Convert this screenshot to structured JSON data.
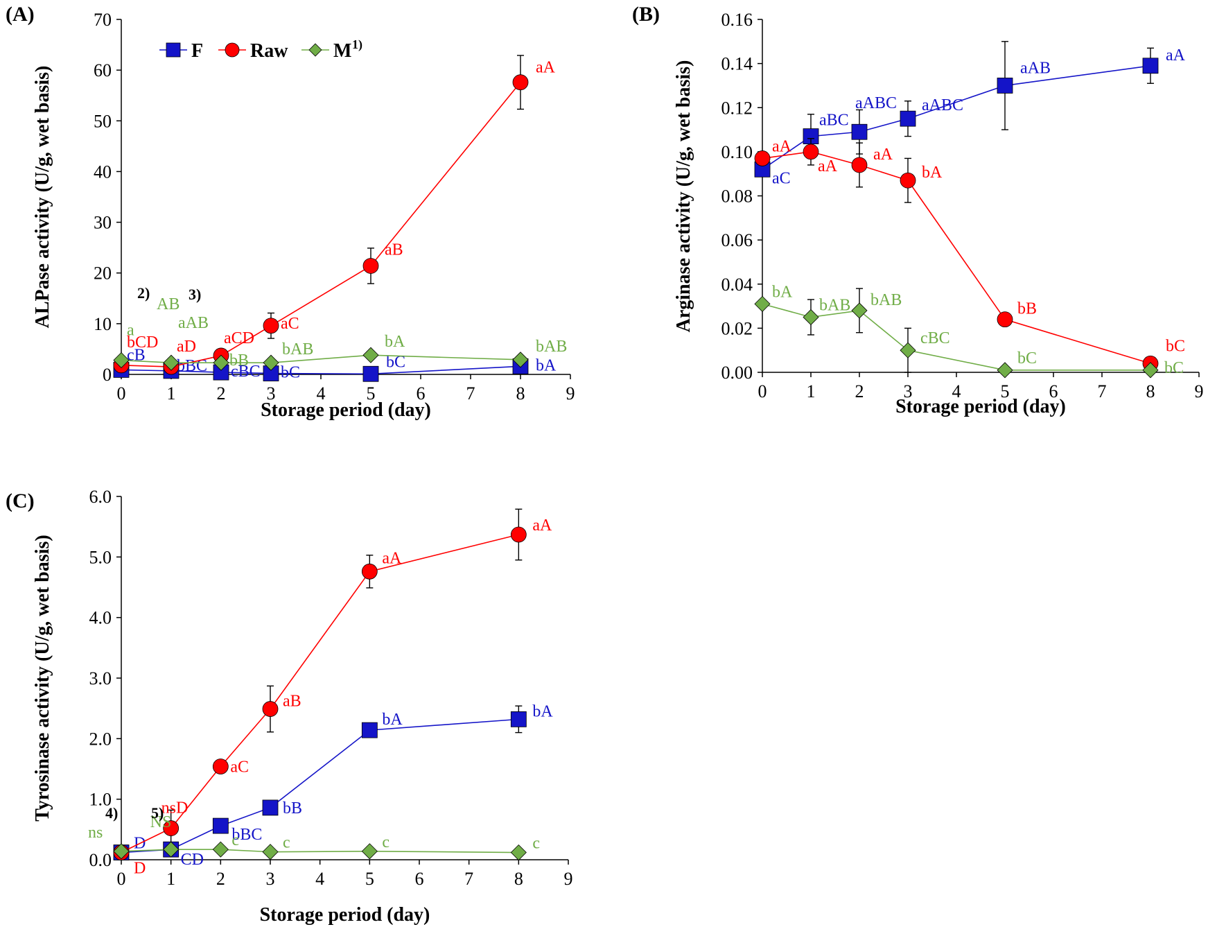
{
  "colors": {
    "F": "#1414c8",
    "Raw": "#ff0000",
    "M": "#70ad47",
    "axis": "#000000"
  },
  "chart_data": [
    {
      "type": "line",
      "panel_label": "(A)",
      "xlabel": "Storage period (day)",
      "ylabel": "ALPase activity (U/g, wet basis)",
      "xlim": [
        0,
        9
      ],
      "ylim": [
        0,
        70
      ],
      "xticks": [
        0,
        1,
        2,
        3,
        4,
        5,
        6,
        7,
        8,
        9
      ],
      "yticks": [
        0,
        10,
        20,
        30,
        40,
        50,
        60,
        70
      ],
      "ytick_labels": [
        "0",
        "10",
        "20",
        "30",
        "40",
        "50",
        "60",
        "70"
      ],
      "legend": {
        "position": "top-left",
        "entries": [
          "F",
          "Raw",
          "M"
        ],
        "footnote": "1)"
      },
      "series": [
        {
          "name": "F",
          "marker": "square",
          "x": [
            0,
            1,
            2,
            3,
            5,
            8
          ],
          "y": [
            0.9,
            0.7,
            0.4,
            0.2,
            0.1,
            1.6
          ],
          "err": [
            0,
            0,
            0,
            0,
            0,
            0
          ],
          "labels": [
            "cB",
            "bBC",
            "cBC",
            "bC",
            "bC",
            "bA"
          ]
        },
        {
          "name": "Raw",
          "marker": "circle",
          "x": [
            0,
            1,
            2,
            3,
            5,
            8
          ],
          "y": [
            1.8,
            1.5,
            3.7,
            9.6,
            21.4,
            57.6
          ],
          "err": [
            0,
            0,
            0,
            2.5,
            3.5,
            5.3
          ],
          "labels": [
            "bCD",
            "aD",
            "aCD",
            "aC",
            "aB",
            "aA"
          ]
        },
        {
          "name": "M",
          "marker": "diamond",
          "x": [
            0,
            1,
            2,
            3,
            5,
            8
          ],
          "y": [
            2.8,
            2.3,
            2.3,
            2.3,
            3.8,
            2.9
          ],
          "err": [
            0,
            0,
            0,
            0,
            0,
            0
          ],
          "labels": [
            "a",
            "aAB",
            "bB",
            "bAB",
            "bA",
            "bAB"
          ]
        }
      ],
      "extra_annotations": [
        {
          "text": "2)",
          "color": "#000000"
        },
        {
          "text": "AB",
          "color": "#70ad47"
        },
        {
          "text": "3)",
          "color": "#000000"
        }
      ]
    },
    {
      "type": "line",
      "panel_label": "(B)",
      "xlabel": "Storage period (day)",
      "ylabel": "Arginase activity (U/g, wet basis)",
      "xlim": [
        0,
        9
      ],
      "ylim": [
        0,
        0.16
      ],
      "xticks": [
        0,
        1,
        2,
        3,
        4,
        5,
        6,
        7,
        8,
        9
      ],
      "yticks": [
        0,
        0.02,
        0.04,
        0.06,
        0.08,
        0.1,
        0.12,
        0.14,
        0.16
      ],
      "ytick_labels": [
        "0.00",
        "0.02",
        "0.04",
        "0.06",
        "0.08",
        "0.10",
        "0.12",
        "0.14",
        "0.16"
      ],
      "series": [
        {
          "name": "F",
          "marker": "square",
          "x": [
            0,
            1,
            2,
            3,
            5,
            8
          ],
          "y": [
            0.092,
            0.107,
            0.109,
            0.115,
            0.13,
            0.139
          ],
          "err": [
            0,
            0.01,
            0.01,
            0.008,
            0.02,
            0.008
          ],
          "labels": [
            "aC",
            "aBC",
            "aABC",
            "aABC",
            "aAB",
            "aA"
          ]
        },
        {
          "name": "Raw",
          "marker": "circle",
          "x": [
            0,
            1,
            2,
            3,
            5,
            8
          ],
          "y": [
            0.097,
            0.1,
            0.094,
            0.087,
            0.024,
            0.004
          ],
          "err": [
            0,
            0.006,
            0.01,
            0.01,
            0,
            0
          ],
          "labels": [
            "aA",
            "aA",
            "aA",
            "bA",
            "bB",
            "bC"
          ]
        },
        {
          "name": "M",
          "marker": "diamond",
          "x": [
            0,
            1,
            2,
            3,
            5,
            8
          ],
          "y": [
            0.031,
            0.025,
            0.028,
            0.01,
            0.001,
            0.001
          ],
          "err": [
            0,
            0.008,
            0.01,
            0.01,
            0,
            0
          ],
          "labels": [
            "bA",
            "bAB",
            "bAB",
            "cBC",
            "bC",
            "bC"
          ]
        }
      ]
    },
    {
      "type": "line",
      "panel_label": "(C)",
      "xlabel": "Storage period (day)",
      "ylabel": "Tyrosinase activity (U/g, wet basis)",
      "xlim": [
        0,
        9
      ],
      "ylim": [
        0,
        6
      ],
      "xticks": [
        0,
        1,
        2,
        3,
        4,
        5,
        6,
        7,
        8,
        9
      ],
      "yticks": [
        0,
        1,
        2,
        3,
        4,
        5,
        6
      ],
      "ytick_labels": [
        "0.0",
        "1.0",
        "2.0",
        "3.0",
        "4.0",
        "5.0",
        "6.0"
      ],
      "series": [
        {
          "name": "F",
          "marker": "square",
          "x": [
            0,
            1,
            2,
            3,
            5,
            8
          ],
          "y": [
            0.12,
            0.17,
            0.56,
            0.86,
            2.14,
            2.32
          ],
          "err": [
            0,
            0.05,
            0,
            0,
            0.1,
            0.22
          ],
          "labels": [
            "D",
            "CD",
            "bBC",
            "bB",
            "bA",
            "bA"
          ]
        },
        {
          "name": "Raw",
          "marker": "circle",
          "x": [
            0,
            1,
            2,
            3,
            5,
            8
          ],
          "y": [
            0.12,
            0.52,
            1.54,
            2.49,
            4.76,
            5.37
          ],
          "err": [
            0,
            0.3,
            0,
            0.38,
            0.27,
            0.42
          ],
          "labels": [
            "D",
            "nsD",
            "aC",
            "aB",
            "aA",
            "aA"
          ]
        },
        {
          "name": "M",
          "marker": "diamond",
          "x": [
            0,
            1,
            2,
            3,
            5,
            8
          ],
          "y": [
            0.14,
            0.17,
            0.17,
            0.13,
            0.14,
            0.12
          ],
          "err": [
            0,
            0,
            0,
            0,
            0,
            0
          ],
          "labels": [
            "ns",
            "NS",
            "c",
            "c",
            "c",
            "c"
          ]
        }
      ],
      "extra_annotations": [
        {
          "text": "4)",
          "color": "#000000"
        },
        {
          "text": "5)",
          "color": "#000000"
        }
      ]
    }
  ]
}
